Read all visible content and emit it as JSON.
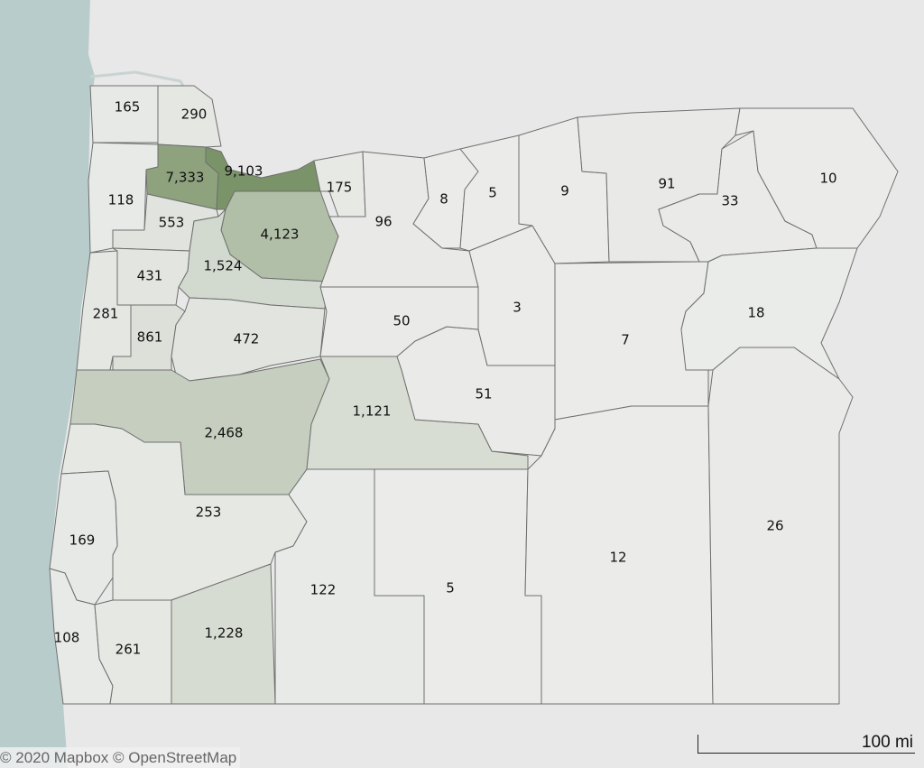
{
  "map": {
    "region": "Oregon counties",
    "colors": {
      "ocean": "#b9cccc",
      "land": "#e9eae9",
      "low": "#ebecea",
      "high": "#7b9368",
      "border": "#6f6f6f"
    },
    "counties": [
      {
        "value": "165"
      },
      {
        "value": "290"
      },
      {
        "value": "118"
      },
      {
        "value": "7,333"
      },
      {
        "value": "9,103"
      },
      {
        "value": "4,123"
      },
      {
        "value": "553"
      },
      {
        "value": "1,524"
      },
      {
        "value": "431"
      },
      {
        "value": "281"
      },
      {
        "value": "861"
      },
      {
        "value": "472"
      },
      {
        "value": "2,468"
      },
      {
        "value": "253"
      },
      {
        "value": "169"
      },
      {
        "value": "108"
      },
      {
        "value": "261"
      },
      {
        "value": "1,228"
      },
      {
        "value": "122"
      },
      {
        "value": "5"
      },
      {
        "value": "1,121"
      },
      {
        "value": "51"
      },
      {
        "value": "50"
      },
      {
        "value": "175"
      },
      {
        "value": "96"
      },
      {
        "value": "8"
      },
      {
        "value": "5"
      },
      {
        "value": "3"
      },
      {
        "value": "9"
      },
      {
        "value": "91"
      },
      {
        "value": "33"
      },
      {
        "value": "10"
      },
      {
        "value": "7"
      },
      {
        "value": "12"
      },
      {
        "value": "18"
      },
      {
        "value": "26"
      }
    ]
  },
  "attribution": "© 2020 Mapbox  © OpenStreetMap",
  "scale_bar": {
    "label": "100 mi"
  }
}
